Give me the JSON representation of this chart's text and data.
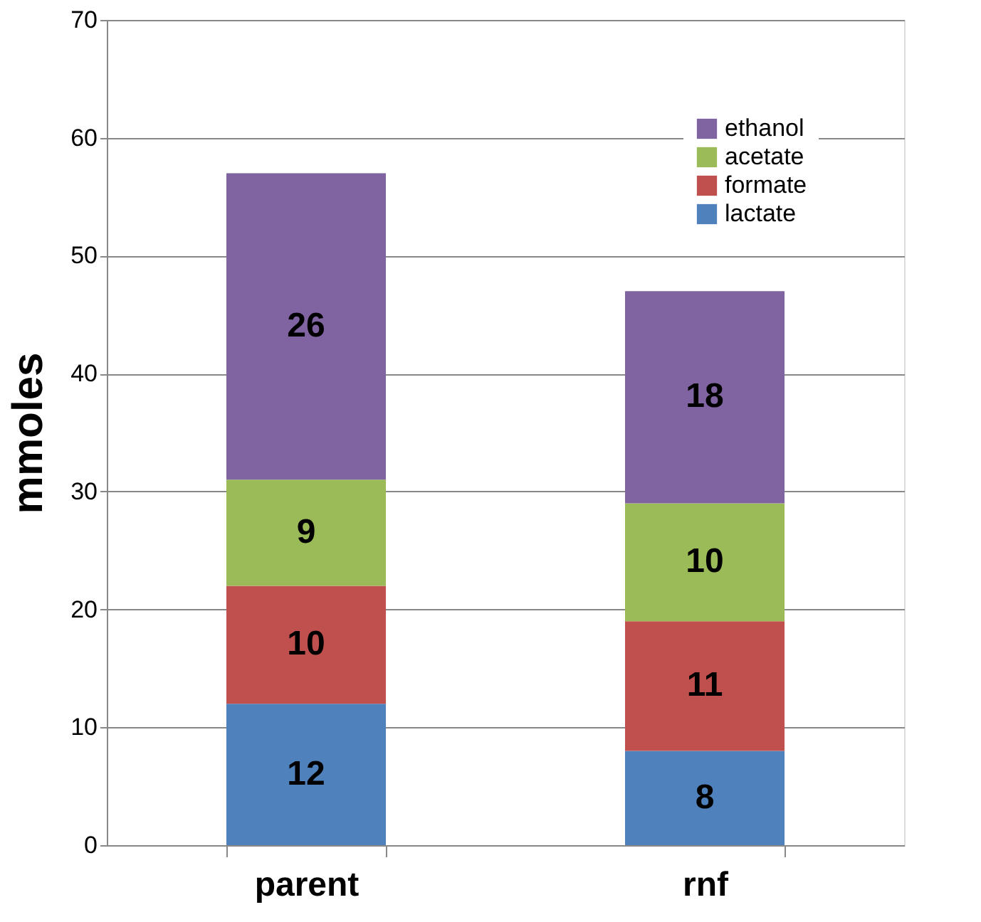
{
  "chart_data": {
    "type": "bar",
    "stacked": true,
    "ylabel": "mmoles",
    "categories": [
      "parent",
      "rnf"
    ],
    "series": [
      {
        "name": "lactate",
        "color": "#4f81bd",
        "values": [
          12,
          8
        ]
      },
      {
        "name": "formate",
        "color": "#c0504d",
        "values": [
          10,
          11
        ]
      },
      {
        "name": "acetate",
        "color": "#9bbb59",
        "values": [
          9,
          10
        ]
      },
      {
        "name": "ethanol",
        "color": "#8064a2",
        "values": [
          26,
          18
        ]
      }
    ],
    "ylim": [
      0,
      70
    ],
    "yticks": [
      0,
      10,
      20,
      30,
      40,
      50,
      60,
      70
    ],
    "grid": "y",
    "legend": "top right",
    "data_labels": true
  }
}
